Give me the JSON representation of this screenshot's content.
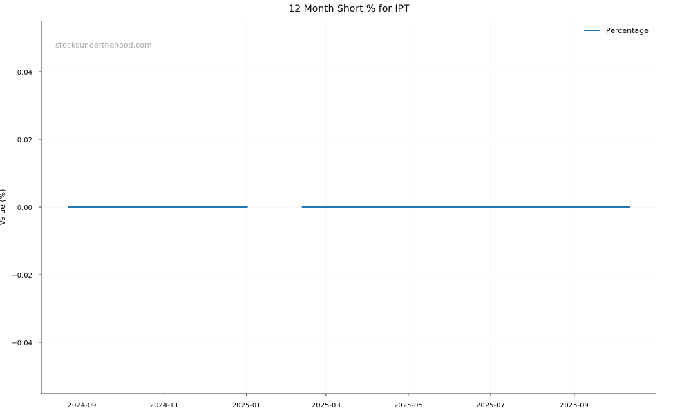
{
  "chart_data": {
    "type": "line",
    "title": "12 Month Short % for IPT",
    "xlabel": "",
    "ylabel": "Value (%)",
    "watermark": "stocksunderthehood.com",
    "xlim": [
      "2024-08-02",
      "2025-11-01"
    ],
    "ylim": [
      -0.0551,
      0.0551
    ],
    "x_ticks": [
      "2024-09",
      "2024-11",
      "2025-01",
      "2025-03",
      "2025-05",
      "2025-07",
      "2025-09"
    ],
    "y_ticks": [
      -0.04,
      -0.02,
      0.0,
      0.02,
      0.04
    ],
    "y_tick_labels": [
      "−0.04",
      "−0.02",
      "0.00",
      "0.02",
      "0.04"
    ],
    "grid": true,
    "legend_position": "top-right",
    "series": [
      {
        "name": "Percentage",
        "color": "#1f77b4",
        "segments": [
          [
            {
              "x": "2024-08-22",
              "y": 0.0
            },
            {
              "x": "2025-01-02",
              "y": 0.0
            }
          ],
          [
            {
              "x": "2025-02-11",
              "y": 0.0
            },
            {
              "x": "2025-10-12",
              "y": 0.0
            }
          ]
        ]
      }
    ]
  }
}
